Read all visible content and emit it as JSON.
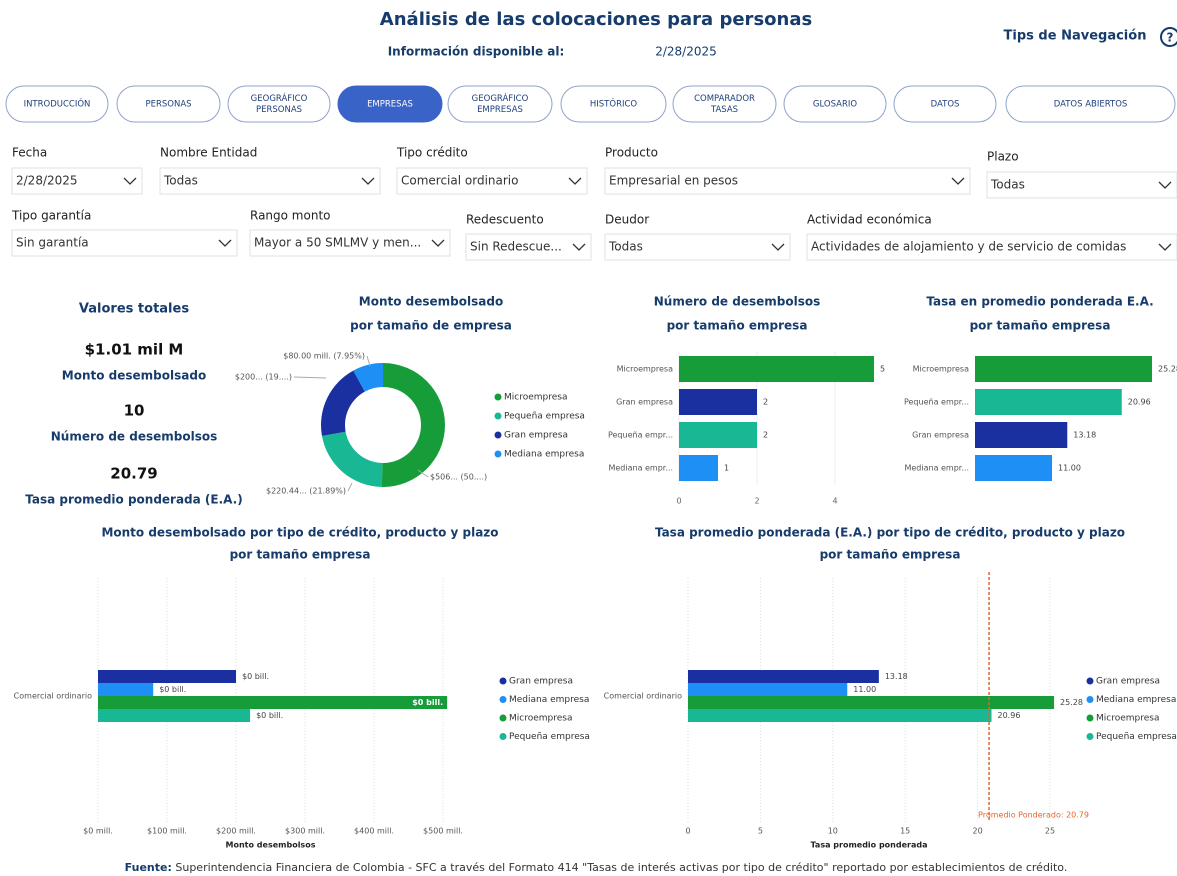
{
  "header": {
    "title": "Análisis de las colocaciones para personas",
    "date_label": "Información disponible al:",
    "date": "2/28/2025",
    "help": "Tips de Navegación",
    "help_icon": "?"
  },
  "tabs": {
    "active": 3,
    "items": [
      [
        "INTRODUCCIÓN"
      ],
      [
        "PERSONAS"
      ],
      [
        "GEOGRÁFICO",
        "PERSONAS"
      ],
      [
        "EMPRESAS"
      ],
      [
        "GEOGRÁFICO",
        "EMPRESAS"
      ],
      [
        "HISTÓRICO"
      ],
      [
        "COMPARADOR",
        "TASAS"
      ],
      [
        "GLOSARIO"
      ],
      [
        "DATOS"
      ],
      [
        "DATOS ABIERTOS"
      ]
    ]
  },
  "filters": [
    {
      "label": "Fecha",
      "value": "2/28/2025"
    },
    {
      "label": "Nombre Entidad",
      "value": "Todas"
    },
    {
      "label": "Tipo crédito",
      "value": "Comercial ordinario"
    },
    {
      "label": "Producto",
      "value": "Empresarial en pesos"
    },
    {
      "label": "Plazo",
      "value": "Todas"
    },
    {
      "label": "Tipo garantía",
      "value": "Sin garantía"
    },
    {
      "label": "Rango monto",
      "value": "Mayor a 50 SMLMV y men..."
    },
    {
      "label": "Redescuento",
      "value": "Sin Redescue..."
    },
    {
      "label": "Deudor",
      "value": "Todas"
    },
    {
      "label": "Actividad económica",
      "value": "Actividades de alojamiento y de servicio de comidas"
    }
  ],
  "totals": {
    "title": "Valores totales",
    "items": [
      {
        "value": "$1.01 mil M",
        "label": "Monto desembolsado"
      },
      {
        "value": "10",
        "label": "Número de desembolsos"
      },
      {
        "value": "20.79",
        "label": "Tasa promedio ponderada (E.A.)"
      }
    ]
  },
  "charts": [
    {
      "type": "donut",
      "title": [
        "Monto desembolsado",
        "por tamaño de empresa"
      ],
      "categories": [
        "Microempresa",
        "Pequeña empresa",
        "Gran empresa",
        "Mediana empresa"
      ],
      "values": [
        506,
        220.44,
        200,
        80
      ],
      "value_labels": [
        "$506... (50....)",
        "$220.44... (21.89%)",
        "$200... (19....)",
        "$80.00 mill. (7.95%)"
      ],
      "colors": [
        "#179c3a",
        "#18b894",
        "#1a2fa0",
        "#1e8ff5"
      ]
    },
    {
      "type": "hbar",
      "title": [
        "Número de desembolsos",
        "por tamaño empresa"
      ],
      "categories": [
        "Microempresa",
        "Gran empresa",
        "Pequeña empr...",
        "Mediana empr..."
      ],
      "values": [
        5,
        2,
        2,
        1
      ],
      "colors": [
        "#179c3a",
        "#1a2fa0",
        "#18b894",
        "#1e8ff5"
      ],
      "xlim": [
        0,
        5
      ],
      "xticks": [
        0,
        2,
        4
      ]
    },
    {
      "type": "hbar",
      "title": [
        "Tasa en promedio ponderada E.A.",
        "por tamaño empresa"
      ],
      "categories": [
        "Microempresa",
        "Pequeña empr...",
        "Gran empresa",
        "Mediana empr..."
      ],
      "values": [
        25.28,
        20.96,
        13.18,
        11.0
      ],
      "value_labels": [
        "25.28",
        "20.96",
        "13.18",
        "11.00"
      ],
      "colors": [
        "#179c3a",
        "#18b894",
        "#1a2fa0",
        "#1e8ff5"
      ],
      "xlim": [
        0,
        25.28
      ]
    },
    {
      "type": "grouped_hbar",
      "title": [
        "Monto desembolsado por tipo de crédito, producto y plazo",
        "por tamaño empresa"
      ],
      "categories": [
        "Comercial ordinario"
      ],
      "xlabel": "Monto desembolsos",
      "series": [
        {
          "name": "Gran empresa",
          "color": "#1a2fa0",
          "values": [
            200
          ],
          "value_labels": [
            "$0 bill."
          ]
        },
        {
          "name": "Mediana empresa",
          "color": "#1e8ff5",
          "values": [
            80
          ],
          "value_labels": [
            "$0 bill."
          ]
        },
        {
          "name": "Microempresa",
          "color": "#179c3a",
          "values": [
            506
          ],
          "value_labels": [
            "$0 bill."
          ]
        },
        {
          "name": "Pequeña empresa",
          "color": "#18b894",
          "values": [
            220.44
          ],
          "value_labels": [
            "$0 bill."
          ]
        }
      ],
      "xlim": [
        0,
        510
      ],
      "xticks": [
        {
          "value": 0,
          "label": "$0 mill."
        },
        {
          "value": 100,
          "label": "$100 mill."
        },
        {
          "value": 200,
          "label": "$200 mill."
        },
        {
          "value": 300,
          "label": "$300 mill."
        },
        {
          "value": 400,
          "label": "$400 mill."
        },
        {
          "value": 500,
          "label": "$500 mill."
        }
      ]
    },
    {
      "type": "grouped_hbar",
      "title": [
        "Tasa promedio ponderada (E.A.) por tipo de crédito, producto y plazo",
        "por tamaño empresa"
      ],
      "categories": [
        "Comercial ordinario"
      ],
      "xlabel": "Tasa promedio ponderada",
      "series": [
        {
          "name": "Gran empresa",
          "color": "#1a2fa0",
          "values": [
            13.18
          ],
          "value_labels": [
            "13.18"
          ]
        },
        {
          "name": "Mediana empresa",
          "color": "#1e8ff5",
          "values": [
            11.0
          ],
          "value_labels": [
            "11.00"
          ]
        },
        {
          "name": "Microempresa",
          "color": "#179c3a",
          "values": [
            25.28
          ],
          "value_labels": [
            "25.28"
          ]
        },
        {
          "name": "Pequeña empresa",
          "color": "#18b894",
          "values": [
            20.96
          ],
          "value_labels": [
            "20.96"
          ]
        }
      ],
      "xlim": [
        0,
        26
      ],
      "xticks": [
        0,
        5,
        10,
        15,
        20,
        25
      ],
      "ref_line": {
        "value": 20.79,
        "label": "Promedio Ponderado: 20.79",
        "color": "#e8642c"
      }
    }
  ],
  "footer": {
    "label": "Fuente:",
    "text": "Superintendencia Financiera de Colombia - SFC a través del Formato 414 \"Tasas de interés activas por tipo de crédito\" reportado por establecimientos de crédito."
  }
}
